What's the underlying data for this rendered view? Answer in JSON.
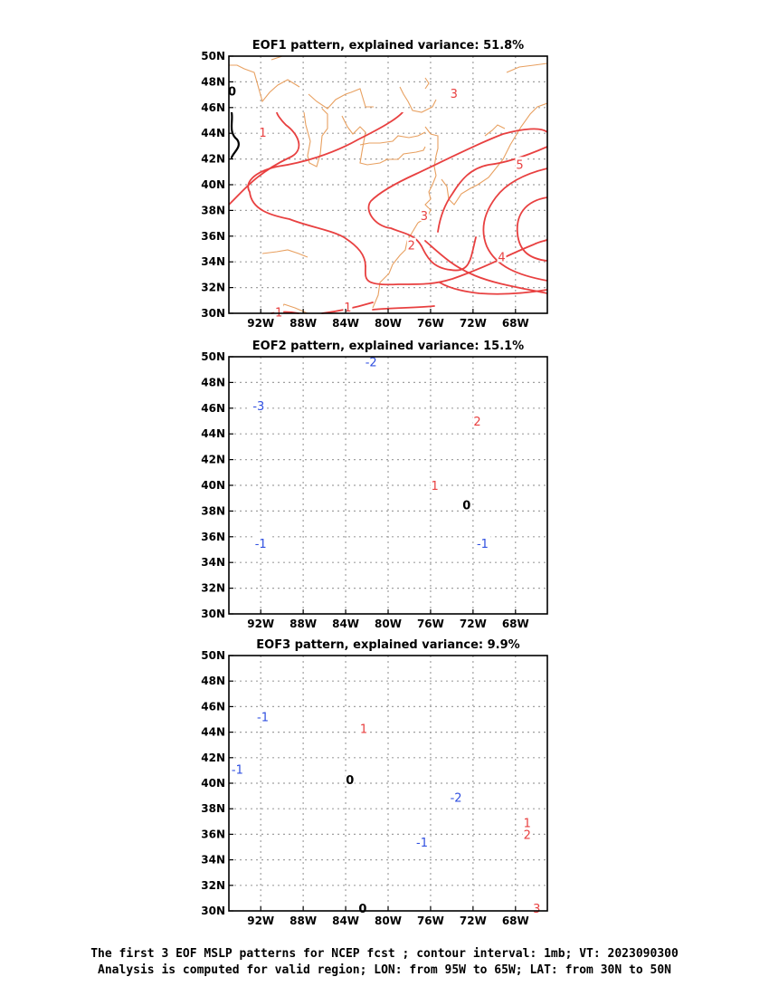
{
  "chart_data": [
    {
      "type": "contour-map",
      "title": "EOF1 pattern, explained variance: 51.8%",
      "lon_ticks": [
        "92W",
        "88W",
        "84W",
        "80W",
        "76W",
        "72W",
        "68W"
      ],
      "lat_ticks": [
        "50N",
        "48N",
        "46N",
        "44N",
        "42N",
        "40N",
        "38N",
        "36N",
        "34N",
        "32N",
        "30N"
      ],
      "contour_labels": [
        {
          "text": "0",
          "lon": -94.7,
          "lat": 47.3,
          "color": "#000000"
        },
        {
          "text": "1",
          "lon": -91.8,
          "lat": 44.1,
          "color": "#e84040"
        },
        {
          "text": "3",
          "lon": -73.8,
          "lat": 47.1,
          "color": "#e84040"
        },
        {
          "text": "5",
          "lon": -67.6,
          "lat": 41.6,
          "color": "#e84040"
        },
        {
          "text": "3",
          "lon": -76.6,
          "lat": 37.6,
          "color": "#e84040"
        },
        {
          "text": "2",
          "lon": -77.8,
          "lat": 35.3,
          "color": "#e84040"
        },
        {
          "text": "4",
          "lon": -69.3,
          "lat": 34.4,
          "color": "#e84040"
        },
        {
          "text": "1",
          "lon": -83.8,
          "lat": 30.5,
          "color": "#e84040"
        },
        {
          "text": "1",
          "lon": -90.3,
          "lat": 30.1,
          "color": "#e84040"
        }
      ]
    },
    {
      "type": "contour-map",
      "title": "EOF2 pattern, explained variance: 15.1%",
      "lon_ticks": [
        "92W",
        "88W",
        "84W",
        "80W",
        "76W",
        "72W",
        "68W"
      ],
      "lat_ticks": [
        "50N",
        "48N",
        "46N",
        "44N",
        "42N",
        "40N",
        "38N",
        "36N",
        "34N",
        "32N",
        "30N"
      ],
      "contour_labels": [
        {
          "text": "-2",
          "lon": -81.6,
          "lat": 49.6,
          "color": "#3050e0"
        },
        {
          "text": "-3",
          "lon": -92.2,
          "lat": 46.2,
          "color": "#3050e0"
        },
        {
          "text": "2",
          "lon": -71.6,
          "lat": 45.0,
          "color": "#e84040"
        },
        {
          "text": "1",
          "lon": -75.6,
          "lat": 40.0,
          "color": "#e84040"
        },
        {
          "text": "0",
          "lon": -72.6,
          "lat": 38.5,
          "color": "#000000"
        },
        {
          "text": "-1",
          "lon": -71.1,
          "lat": 35.5,
          "color": "#3050e0"
        },
        {
          "text": "-1",
          "lon": -92.0,
          "lat": 35.5,
          "color": "#3050e0"
        }
      ]
    },
    {
      "type": "contour-map",
      "title": "EOF3 pattern, explained variance: 9.9%",
      "lon_ticks": [
        "92W",
        "88W",
        "84W",
        "80W",
        "76W",
        "72W",
        "68W"
      ],
      "lat_ticks": [
        "50N",
        "48N",
        "46N",
        "44N",
        "42N",
        "40N",
        "38N",
        "36N",
        "34N",
        "32N",
        "30N"
      ],
      "contour_labels": [
        {
          "text": "-1",
          "lon": -91.8,
          "lat": 45.2,
          "color": "#3050e0"
        },
        {
          "text": "1",
          "lon": -82.3,
          "lat": 44.3,
          "color": "#e84040"
        },
        {
          "text": "-1",
          "lon": -94.2,
          "lat": 41.1,
          "color": "#3050e0"
        },
        {
          "text": "0",
          "lon": -83.6,
          "lat": 40.3,
          "color": "#000000"
        },
        {
          "text": "-2",
          "lon": -73.6,
          "lat": 38.9,
          "color": "#3050e0"
        },
        {
          "text": "-1",
          "lon": -76.8,
          "lat": 35.4,
          "color": "#3050e0"
        },
        {
          "text": "2",
          "lon": -66.9,
          "lat": 36.0,
          "color": "#e84040"
        },
        {
          "text": "1",
          "lon": -66.9,
          "lat": 36.9,
          "color": "#e84040"
        },
        {
          "text": "0",
          "lon": -82.4,
          "lat": 30.2,
          "color": "#000000"
        },
        {
          "text": "3",
          "lon": -66.0,
          "lat": 30.2,
          "color": "#e84040"
        }
      ]
    }
  ],
  "caption": {
    "line1": "The first 3 EOF MSLP patterns for NCEP fcst ; contour interval: 1mb; VT: 2023090300",
    "line2": "Analysis is computed for valid region; LON: from 95W to 65W; LAT: from 30N to 50N"
  },
  "colors": {
    "positive": "#e84040",
    "negative": "#3050e0",
    "zero": "#000000",
    "coast": "#e8a060",
    "grid": "#a0a0a0"
  }
}
